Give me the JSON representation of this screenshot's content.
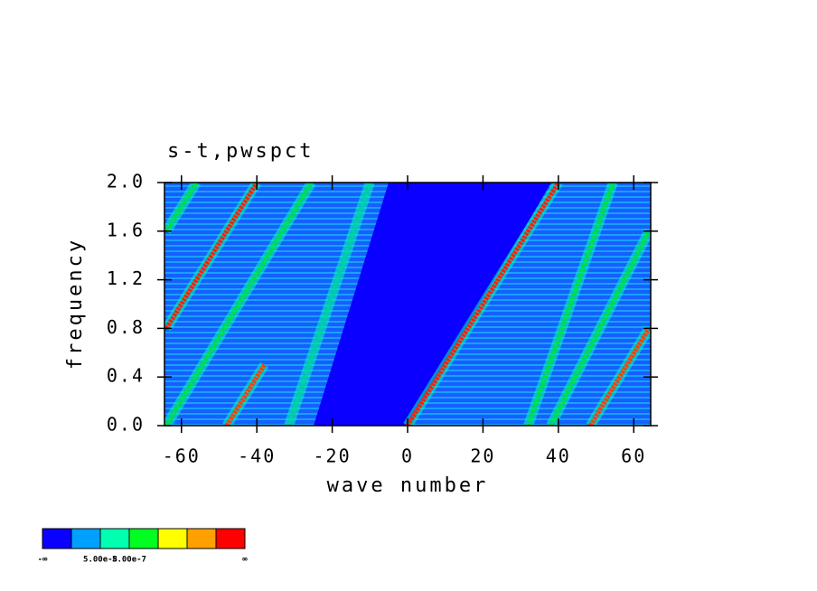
{
  "chart_data": {
    "type": "contour",
    "title": "s-t,pwspct",
    "x_label": "wave number",
    "y_label": "frequency",
    "xlim": [
      -64.5,
      64.5
    ],
    "ylim": [
      0,
      2
    ],
    "xticks": [
      -60,
      -40,
      -20,
      0,
      20,
      40,
      60
    ],
    "yticks": [
      {
        "value": 0,
        "label": "0.0"
      },
      0.4,
      0.8,
      1.2,
      1.6,
      {
        "value": 2,
        "label": "2.0"
      }
    ],
    "ridges": [
      {
        "x": [
          0,
          40
        ],
        "y": [
          0,
          2
        ],
        "color": "#ff2000"
      },
      {
        "x": [
          -64,
          -40
        ],
        "y": [
          0.8,
          2
        ],
        "color": "#ff2000"
      },
      {
        "x": [
          -48,
          -38
        ],
        "y": [
          0,
          0.5
        ],
        "color": "#ff4000"
      },
      {
        "x": [
          48.5,
          64
        ],
        "y": [
          0,
          0.8
        ],
        "color": "#ff4000"
      },
      {
        "x": [
          -64,
          -25.5
        ],
        "y": [
          0,
          2
        ],
        "color": "#00e040"
      },
      {
        "x": [
          -64,
          -56
        ],
        "y": [
          1.6,
          2
        ],
        "color": "#00e040"
      },
      {
        "x": [
          32,
          54.5
        ],
        "y": [
          0,
          2
        ],
        "color": "#00e040"
      },
      {
        "x": [
          38,
          64
        ],
        "y": [
          0,
          1.6
        ],
        "color": "#00e040"
      },
      {
        "x": [
          -31.5,
          -10
        ],
        "y": [
          0,
          2
        ],
        "color": "#00d0a0"
      }
    ],
    "colorbar": {
      "colors": [
        "#0a00ff",
        "#00a0ff",
        "#00ffb0",
        "#00ff20",
        "#ffff00",
        "#ffa000",
        "#ff0000"
      ],
      "labels": [
        "-∞",
        null,
        "5.00e-8",
        "5.00e-7",
        null,
        null,
        null,
        "∞"
      ]
    }
  }
}
